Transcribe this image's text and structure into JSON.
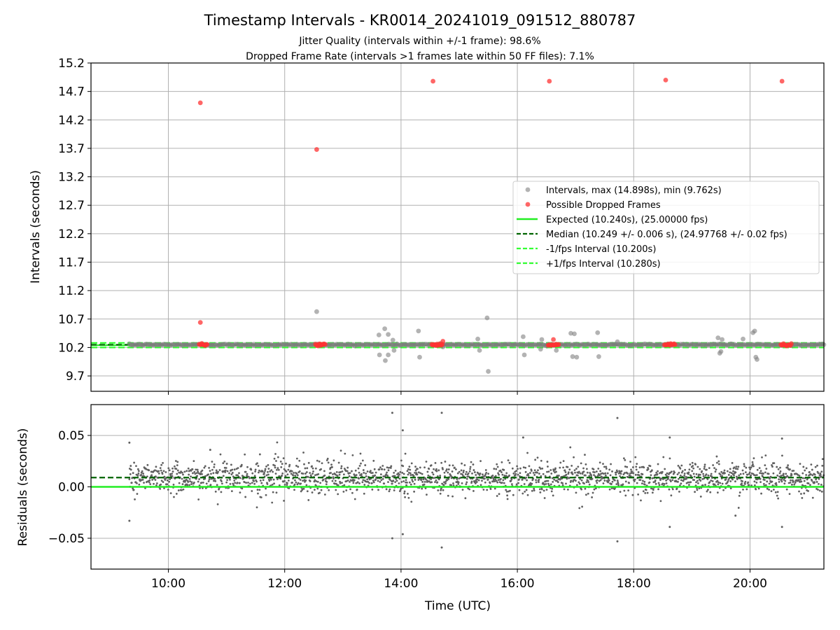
{
  "chart_data": {
    "type": "scatter",
    "title": "Timestamp Intervals - KR0014_20241019_091512_880787",
    "subtitle_lines": [
      "Jitter Quality (intervals within +/-1 frame): 98.6%",
      "Dropped Frame Rate (intervals >1 frames late within 50 FF files): 7.1%"
    ],
    "xlabel": "Time (UTC)",
    "xticks": [
      "10:00",
      "12:00",
      "14:00",
      "16:00",
      "18:00",
      "20:00"
    ],
    "xlim_hours": [
      8.67,
      21.27
    ],
    "grid": true,
    "colors": {
      "intervals": "#808080",
      "dropped": "#ff3333",
      "expected": "#22ee22",
      "median": "#006400",
      "fps_band": "#33ff33",
      "residuals": "#606060"
    },
    "top_panel": {
      "ylabel": "Intervals (seconds)",
      "ylim": [
        9.43,
        15.2
      ],
      "yticks": [
        "9.7",
        "10.2",
        "10.7",
        "11.2",
        "11.7",
        "12.2",
        "12.7",
        "13.2",
        "13.7",
        "14.2",
        "14.7",
        "15.2"
      ],
      "expected": 10.24,
      "median": 10.249,
      "minus_fps": 10.2,
      "plus_fps": 10.28,
      "dense_range_hours": [
        9.33,
        21.27
      ],
      "scatter_points": [
        [
          13.62,
          10.42
        ],
        [
          13.72,
          10.53
        ],
        [
          13.78,
          10.43
        ],
        [
          13.86,
          10.33
        ],
        [
          13.88,
          10.15
        ],
        [
          13.63,
          10.07
        ],
        [
          13.73,
          9.97
        ],
        [
          13.78,
          10.07
        ],
        [
          14.3,
          10.49
        ],
        [
          14.32,
          10.03
        ],
        [
          14.68,
          10.27
        ],
        [
          14.72,
          10.21
        ],
        [
          15.32,
          10.35
        ],
        [
          15.35,
          10.15
        ],
        [
          15.48,
          10.72
        ],
        [
          15.5,
          9.78
        ],
        [
          16.1,
          10.39
        ],
        [
          16.12,
          10.07
        ],
        [
          16.4,
          10.17
        ],
        [
          16.42,
          10.34
        ],
        [
          16.67,
          10.15
        ],
        [
          16.92,
          10.45
        ],
        [
          16.95,
          10.04
        ],
        [
          16.98,
          10.44
        ],
        [
          17.02,
          10.03
        ],
        [
          17.38,
          10.46
        ],
        [
          17.4,
          10.04
        ],
        [
          17.72,
          10.3
        ],
        [
          19.45,
          10.37
        ],
        [
          19.5,
          10.13
        ],
        [
          19.48,
          10.1
        ],
        [
          19.52,
          10.34
        ],
        [
          19.88,
          10.35
        ],
        [
          20.05,
          10.46
        ],
        [
          20.08,
          10.49
        ],
        [
          20.1,
          10.03
        ],
        [
          20.12,
          9.99
        ],
        [
          12.55,
          10.83
        ],
        [
          20.55,
          10.24
        ]
      ],
      "dropped_points": [
        [
          10.55,
          14.5
        ],
        [
          10.55,
          10.64
        ],
        [
          12.55,
          13.68
        ],
        [
          14.55,
          14.88
        ],
        [
          16.55,
          14.88
        ],
        [
          18.55,
          14.9
        ],
        [
          20.55,
          14.88
        ],
        [
          14.72,
          10.31
        ],
        [
          16.62,
          10.34
        ]
      ],
      "dropped_clusters": [
        [
          10.53,
          10.68
        ],
        [
          12.53,
          12.7
        ],
        [
          14.53,
          14.72
        ],
        [
          16.53,
          16.72
        ],
        [
          18.53,
          18.72
        ],
        [
          20.53,
          20.72
        ]
      ]
    },
    "bottom_panel": {
      "ylabel": "Residuals (seconds)",
      "ylim": [
        -0.08,
        0.08
      ],
      "yticks": [
        "−0.05",
        "0.00",
        "0.05"
      ],
      "expected_residual": 0.0,
      "median_residual": 0.009,
      "outliers": [
        [
          9.33,
          0.043
        ],
        [
          9.33,
          -0.033
        ],
        [
          10.72,
          0.036
        ],
        [
          13.85,
          0.072
        ],
        [
          13.85,
          -0.05
        ],
        [
          14.03,
          0.055
        ],
        [
          14.03,
          -0.046
        ],
        [
          14.7,
          0.072
        ],
        [
          14.7,
          -0.059
        ],
        [
          16.1,
          0.048
        ],
        [
          17.72,
          0.067
        ],
        [
          17.72,
          -0.053
        ],
        [
          18.62,
          0.048
        ],
        [
          18.62,
          -0.039
        ],
        [
          19.75,
          -0.028
        ],
        [
          20.55,
          0.047
        ],
        [
          20.55,
          -0.039
        ]
      ]
    },
    "legend": {
      "placement": "center-right",
      "entries": [
        {
          "label": "Intervals, max (14.898s), min (9.762s)",
          "style": "scatter-gray"
        },
        {
          "label": "Possible Dropped Frames",
          "style": "scatter-red"
        },
        {
          "label": "Expected (10.240s), (25.00000 fps)",
          "style": "line-green"
        },
        {
          "label": "Median (10.249 +/- 0.006 s), (24.97768 +/- 0.02 fps)",
          "style": "dash-darkgreen"
        },
        {
          "label": "-1/fps Interval (10.200s)",
          "style": "dash-green"
        },
        {
          "label": "+1/fps Interval (10.280s)",
          "style": "dash-green"
        }
      ]
    }
  }
}
